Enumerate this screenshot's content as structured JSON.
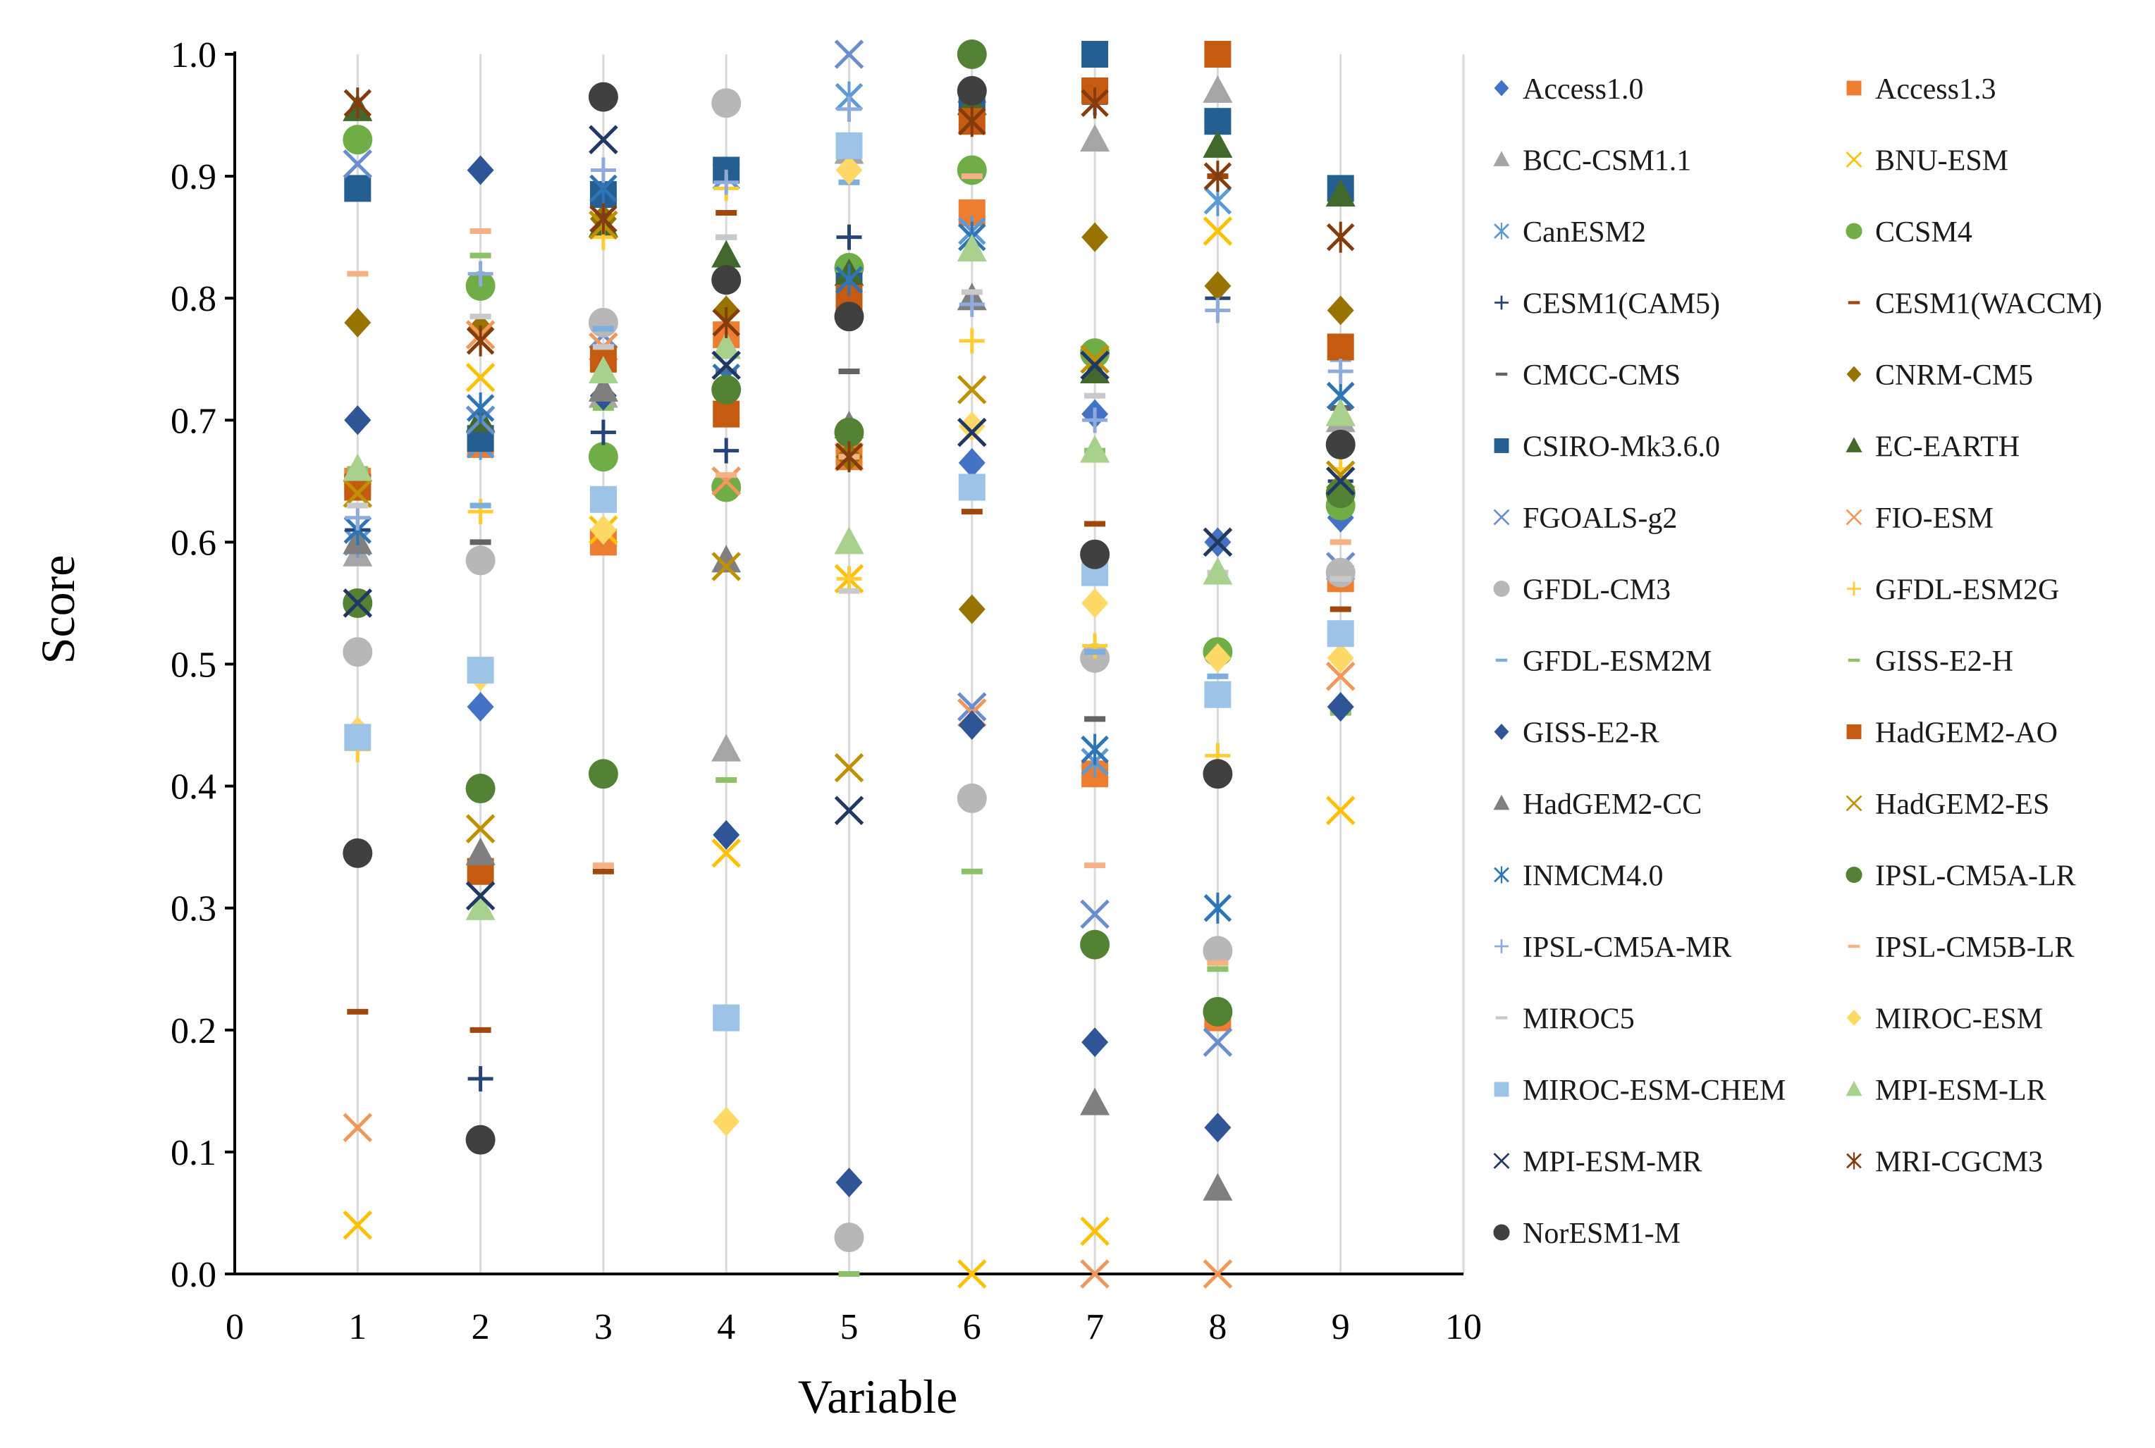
{
  "chart_data": {
    "type": "scatter",
    "title": "",
    "xlabel": "Variable",
    "ylabel": "Score",
    "xlim": [
      0,
      10
    ],
    "ylim": [
      0,
      1
    ],
    "x_ticks": [
      "0",
      "1",
      "2",
      "3",
      "4",
      "5",
      "6",
      "7",
      "8",
      "9",
      "10"
    ],
    "y_ticks": [
      "0.0",
      "0.1",
      "0.2",
      "0.3",
      "0.4",
      "0.5",
      "0.6",
      "0.7",
      "0.8",
      "0.9",
      "1.0"
    ],
    "grid": "vertical",
    "legend_position": "right",
    "x": [
      1,
      2,
      3,
      4,
      5,
      6,
      7,
      8,
      9
    ],
    "series": [
      {
        "name": "Access1.0",
        "marker": "diamond",
        "color": "#4472C4",
        "values": [
          0.7,
          0.465,
          0.745,
          0.725,
          0.81,
          0.665,
          0.705,
          0.6,
          0.62
        ]
      },
      {
        "name": "Access1.3",
        "marker": "square",
        "color": "#ED7D31",
        "values": [
          0.65,
          0.68,
          0.6,
          0.77,
          0.67,
          0.87,
          0.41,
          0.21,
          0.57
        ]
      },
      {
        "name": "BCC-CSM1.1",
        "marker": "triangle",
        "color": "#A5A5A5",
        "values": [
          0.59,
          0.345,
          0.72,
          0.43,
          0.92,
          0.97,
          0.93,
          0.97,
          0.7
        ]
      },
      {
        "name": "BNU-ESM",
        "marker": "x",
        "color": "#FFC000",
        "values": [
          0.04,
          0.735,
          0.61,
          0.345,
          0.57,
          0.0,
          0.035,
          0.855,
          0.38
        ]
      },
      {
        "name": "CanESM2",
        "marker": "star",
        "color": "#5B9BD5",
        "values": [
          0.6,
          0.68,
          0.75,
          0.9,
          0.965,
          0.855,
          0.42,
          0.88,
          0.72
        ]
      },
      {
        "name": "CCSM4",
        "marker": "circle",
        "color": "#70AD47",
        "values": [
          0.93,
          0.81,
          0.67,
          0.645,
          0.825,
          0.905,
          0.755,
          0.51,
          0.63
        ]
      },
      {
        "name": "CESM1(CAM5)",
        "marker": "plus",
        "color": "#264478",
        "values": [
          0.61,
          0.16,
          0.69,
          0.675,
          0.85,
          0.95,
          0.96,
          0.8,
          0.65
        ]
      },
      {
        "name": "CESM1(WACCM)",
        "marker": "dash",
        "color": "#9E480E",
        "values": [
          0.215,
          0.2,
          0.33,
          0.87,
          0.8,
          0.625,
          0.615,
          0.9,
          0.545
        ]
      },
      {
        "name": "CMCC-CMS",
        "marker": "dash",
        "color": "#636363",
        "values": [
          0.64,
          0.6,
          0.88,
          0.74,
          0.74,
          0.97,
          0.455,
          0.95,
          0.71
        ]
      },
      {
        "name": "CNRM-CM5",
        "marker": "diamond",
        "color": "#997300",
        "values": [
          0.78,
          0.775,
          0.865,
          0.79,
          0.67,
          0.545,
          0.85,
          0.81,
          0.79
        ]
      },
      {
        "name": "CSIRO-Mk3.6.0",
        "marker": "square",
        "color": "#255E91",
        "values": [
          0.89,
          0.685,
          0.885,
          0.905,
          0.81,
          0.96,
          1.0,
          0.945,
          0.89
        ]
      },
      {
        "name": "EC-EARTH",
        "marker": "triangle",
        "color": "#43682B",
        "values": [
          0.955,
          0.7,
          0.86,
          0.835,
          0.82,
          0.96,
          0.74,
          0.925,
          0.885
        ]
      },
      {
        "name": "FGOALS-g2",
        "marker": "x",
        "color": "#698ED0",
        "values": [
          0.91,
          0.7,
          0.77,
          0.65,
          1.0,
          0.465,
          0.295,
          0.19,
          0.58
        ]
      },
      {
        "name": "FIO-ESM",
        "marker": "x",
        "color": "#F1975A",
        "values": [
          0.12,
          0.77,
          0.76,
          0.65,
          0.67,
          0.46,
          0.0,
          0.0,
          0.49
        ]
      },
      {
        "name": "GFDL-CM3",
        "marker": "circle",
        "color": "#B7B7B7",
        "values": [
          0.51,
          0.585,
          0.78,
          0.96,
          0.03,
          0.39,
          0.505,
          0.265,
          0.575
        ]
      },
      {
        "name": "GFDL-ESM2G",
        "marker": "plus",
        "color": "#FFCD33",
        "values": [
          0.43,
          0.625,
          0.85,
          0.89,
          0.57,
          0.765,
          0.515,
          0.425,
          0.66
        ]
      },
      {
        "name": "GFDL-ESM2M",
        "marker": "dash",
        "color": "#7CAFDD",
        "values": [
          0.63,
          0.63,
          0.775,
          0.85,
          0.895,
          0.9,
          0.51,
          0.49,
          0.75
        ]
      },
      {
        "name": "GISS-E2-H",
        "marker": "dash",
        "color": "#8CC168",
        "values": [
          0.66,
          0.835,
          0.71,
          0.405,
          0.0,
          0.33,
          0.675,
          0.25,
          0.46
        ]
      },
      {
        "name": "GISS-E2-R",
        "marker": "diamond",
        "color": "#2F5597",
        "values": [
          0.7,
          0.905,
          0.72,
          0.36,
          0.075,
          0.45,
          0.19,
          0.12,
          0.465
        ]
      },
      {
        "name": "HadGEM2-AO",
        "marker": "square",
        "color": "#C55A11",
        "values": [
          0.645,
          0.33,
          0.75,
          0.705,
          0.8,
          0.945,
          0.97,
          1.0,
          0.76
        ]
      },
      {
        "name": "HadGEM2-CC",
        "marker": "triangle",
        "color": "#7F7F7F",
        "values": [
          0.6,
          0.345,
          0.725,
          0.585,
          0.695,
          0.8,
          0.14,
          0.07,
          0.705
        ]
      },
      {
        "name": "HadGEM2-ES",
        "marker": "x",
        "color": "#BF9000",
        "values": [
          0.64,
          0.365,
          0.86,
          0.58,
          0.415,
          0.725,
          0.75,
          0.6,
          0.655
        ]
      },
      {
        "name": "INMCM4.0",
        "marker": "star",
        "color": "#2E75B6",
        "values": [
          0.61,
          0.71,
          0.89,
          0.735,
          0.815,
          0.85,
          0.43,
          0.3,
          0.72
        ]
      },
      {
        "name": "IPSL-CM5A-LR",
        "marker": "circle",
        "color": "#548235",
        "values": [
          0.55,
          0.398,
          0.41,
          0.725,
          0.69,
          1.0,
          0.27,
          0.215,
          0.64
        ]
      },
      {
        "name": "IPSL-CM5A-MR",
        "marker": "plus",
        "color": "#8FAADC",
        "values": [
          0.62,
          0.82,
          0.905,
          0.895,
          0.955,
          0.795,
          0.7,
          0.79,
          0.74
        ]
      },
      {
        "name": "IPSL-CM5B-LR",
        "marker": "dash",
        "color": "#F4B183",
        "values": [
          0.82,
          0.855,
          0.335,
          0.655,
          0.67,
          0.9,
          0.335,
          0.255,
          0.6
        ]
      },
      {
        "name": "MIROC5",
        "marker": "dash",
        "color": "#C9C9C9",
        "values": [
          0.63,
          0.785,
          0.76,
          0.85,
          0.56,
          0.805,
          0.72,
          0.575,
          0.57
        ]
      },
      {
        "name": "MIROC-ESM",
        "marker": "diamond",
        "color": "#FFD966",
        "values": [
          0.445,
          0.49,
          0.61,
          0.125,
          0.905,
          0.695,
          0.55,
          0.505,
          0.505
        ]
      },
      {
        "name": "MIROC-ESM-CHEM",
        "marker": "square",
        "color": "#9DC3E6",
        "values": [
          0.44,
          0.495,
          0.635,
          0.21,
          0.925,
          0.645,
          0.575,
          0.475,
          0.525
        ]
      },
      {
        "name": "MPI-ESM-LR",
        "marker": "triangle",
        "color": "#A9D18E",
        "values": [
          0.66,
          0.3,
          0.74,
          0.76,
          0.6,
          0.84,
          0.675,
          0.575,
          0.705
        ]
      },
      {
        "name": "MPI-ESM-MR",
        "marker": "x",
        "color": "#203864",
        "values": [
          0.55,
          0.31,
          0.93,
          0.745,
          0.38,
          0.69,
          0.745,
          0.6,
          0.65
        ]
      },
      {
        "name": "MRI-CGCM3",
        "marker": "star",
        "color": "#843C0C",
        "values": [
          0.96,
          0.765,
          0.865,
          0.78,
          0.67,
          0.945,
          0.96,
          0.9,
          0.85
        ]
      },
      {
        "name": "NorESM1-M",
        "marker": "circle",
        "color": "#404040",
        "values": [
          0.345,
          0.11,
          0.965,
          0.815,
          0.785,
          0.97,
          0.59,
          0.41,
          0.68
        ]
      }
    ]
  }
}
